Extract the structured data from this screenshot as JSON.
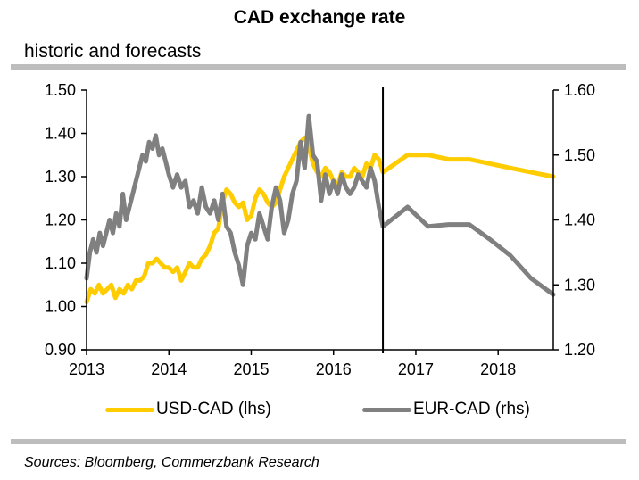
{
  "chart_data": {
    "type": "line",
    "title": "CAD exchange rate",
    "subtitle": "historic and forecasts",
    "source": "Sources: Bloomberg, Commerzbank Research",
    "xlabel": "",
    "x_ticks": [
      "2013",
      "2014",
      "2015",
      "2016",
      "2017",
      "2018"
    ],
    "xlim": [
      2013,
      2018.67
    ],
    "forecast_divider_x": 2016.6,
    "y_left": {
      "label": "lhs",
      "ylim": [
        0.9,
        1.5
      ],
      "ticks": [
        "0.90",
        "1.00",
        "1.10",
        "1.20",
        "1.30",
        "1.40",
        "1.50"
      ]
    },
    "y_right": {
      "label": "rhs",
      "ylim": [
        1.2,
        1.6
      ],
      "ticks": [
        "1.20",
        "1.30",
        "1.40",
        "1.50",
        "1.60"
      ]
    },
    "grid": false,
    "legend_position": "bottom",
    "series": [
      {
        "name": "USD-CAD (lhs)",
        "axis": "left",
        "color": "#ffcc00",
        "x": [
          2013.0,
          2013.05,
          2013.1,
          2013.15,
          2013.2,
          2013.25,
          2013.3,
          2013.35,
          2013.4,
          2013.45,
          2013.5,
          2013.55,
          2013.6,
          2013.65,
          2013.7,
          2013.75,
          2013.8,
          2013.85,
          2013.9,
          2013.95,
          2014.0,
          2014.05,
          2014.1,
          2014.15,
          2014.2,
          2014.25,
          2014.3,
          2014.35,
          2014.4,
          2014.45,
          2014.5,
          2014.55,
          2014.6,
          2014.65,
          2014.7,
          2014.75,
          2014.8,
          2014.85,
          2014.9,
          2014.95,
          2015.0,
          2015.05,
          2015.1,
          2015.15,
          2015.2,
          2015.25,
          2015.3,
          2015.35,
          2015.4,
          2015.45,
          2015.5,
          2015.55,
          2015.6,
          2015.65,
          2015.7,
          2015.75,
          2015.8,
          2015.85,
          2015.9,
          2015.95,
          2016.0,
          2016.05,
          2016.1,
          2016.15,
          2016.2,
          2016.25,
          2016.3,
          2016.35,
          2016.4,
          2016.45,
          2016.5,
          2016.55,
          2016.6,
          2016.9,
          2017.15,
          2017.4,
          2017.65,
          2017.9,
          2018.15,
          2018.4,
          2018.67
        ],
        "values": [
          1.01,
          1.04,
          1.03,
          1.05,
          1.03,
          1.04,
          1.05,
          1.02,
          1.04,
          1.03,
          1.05,
          1.04,
          1.06,
          1.06,
          1.07,
          1.1,
          1.1,
          1.11,
          1.1,
          1.09,
          1.09,
          1.08,
          1.09,
          1.06,
          1.08,
          1.1,
          1.09,
          1.09,
          1.11,
          1.12,
          1.14,
          1.17,
          1.18,
          1.24,
          1.27,
          1.26,
          1.24,
          1.23,
          1.24,
          1.2,
          1.21,
          1.25,
          1.27,
          1.26,
          1.24,
          1.23,
          1.24,
          1.27,
          1.3,
          1.32,
          1.34,
          1.36,
          1.38,
          1.39,
          1.37,
          1.33,
          1.31,
          1.3,
          1.32,
          1.31,
          1.29,
          1.28,
          1.31,
          1.3,
          1.3,
          1.32,
          1.31,
          1.3,
          1.33,
          1.32,
          1.35,
          1.34,
          1.31,
          1.35,
          1.35,
          1.34,
          1.34,
          1.33,
          1.32,
          1.31,
          1.3
        ]
      },
      {
        "name": "EUR-CAD (rhs)",
        "axis": "right",
        "color": "#808080",
        "x": [
          2013.0,
          2013.04,
          2013.08,
          2013.12,
          2013.16,
          2013.2,
          2013.24,
          2013.28,
          2013.32,
          2013.36,
          2013.4,
          2013.44,
          2013.48,
          2013.52,
          2013.56,
          2013.6,
          2013.64,
          2013.68,
          2013.72,
          2013.76,
          2013.8,
          2013.84,
          2013.88,
          2013.92,
          2013.96,
          2014.0,
          2014.05,
          2014.1,
          2014.15,
          2014.2,
          2014.25,
          2014.3,
          2014.35,
          2014.4,
          2014.45,
          2014.5,
          2014.55,
          2014.6,
          2014.65,
          2014.7,
          2014.75,
          2014.8,
          2014.85,
          2014.9,
          2014.95,
          2015.0,
          2015.05,
          2015.1,
          2015.15,
          2015.2,
          2015.25,
          2015.3,
          2015.35,
          2015.4,
          2015.45,
          2015.5,
          2015.55,
          2015.6,
          2015.65,
          2015.7,
          2015.75,
          2015.8,
          2015.85,
          2015.9,
          2015.95,
          2016.0,
          2016.05,
          2016.1,
          2016.15,
          2016.2,
          2016.25,
          2016.3,
          2016.35,
          2016.4,
          2016.45,
          2016.5,
          2016.55,
          2016.6,
          2016.9,
          2017.15,
          2017.4,
          2017.65,
          2017.9,
          2018.15,
          2018.4,
          2018.67
        ],
        "values": [
          1.31,
          1.35,
          1.37,
          1.35,
          1.38,
          1.36,
          1.38,
          1.4,
          1.38,
          1.41,
          1.39,
          1.44,
          1.4,
          1.42,
          1.44,
          1.46,
          1.48,
          1.5,
          1.49,
          1.52,
          1.51,
          1.53,
          1.5,
          1.51,
          1.49,
          1.47,
          1.45,
          1.47,
          1.45,
          1.46,
          1.42,
          1.43,
          1.41,
          1.45,
          1.42,
          1.41,
          1.43,
          1.4,
          1.44,
          1.39,
          1.38,
          1.35,
          1.33,
          1.3,
          1.36,
          1.38,
          1.37,
          1.41,
          1.39,
          1.37,
          1.42,
          1.45,
          1.43,
          1.38,
          1.4,
          1.44,
          1.46,
          1.52,
          1.48,
          1.56,
          1.5,
          1.49,
          1.43,
          1.47,
          1.44,
          1.46,
          1.44,
          1.47,
          1.45,
          1.44,
          1.45,
          1.47,
          1.46,
          1.45,
          1.48,
          1.46,
          1.42,
          1.39,
          1.42,
          1.39,
          1.393,
          1.393,
          1.37,
          1.345,
          1.31,
          1.285
        ]
      }
    ]
  }
}
